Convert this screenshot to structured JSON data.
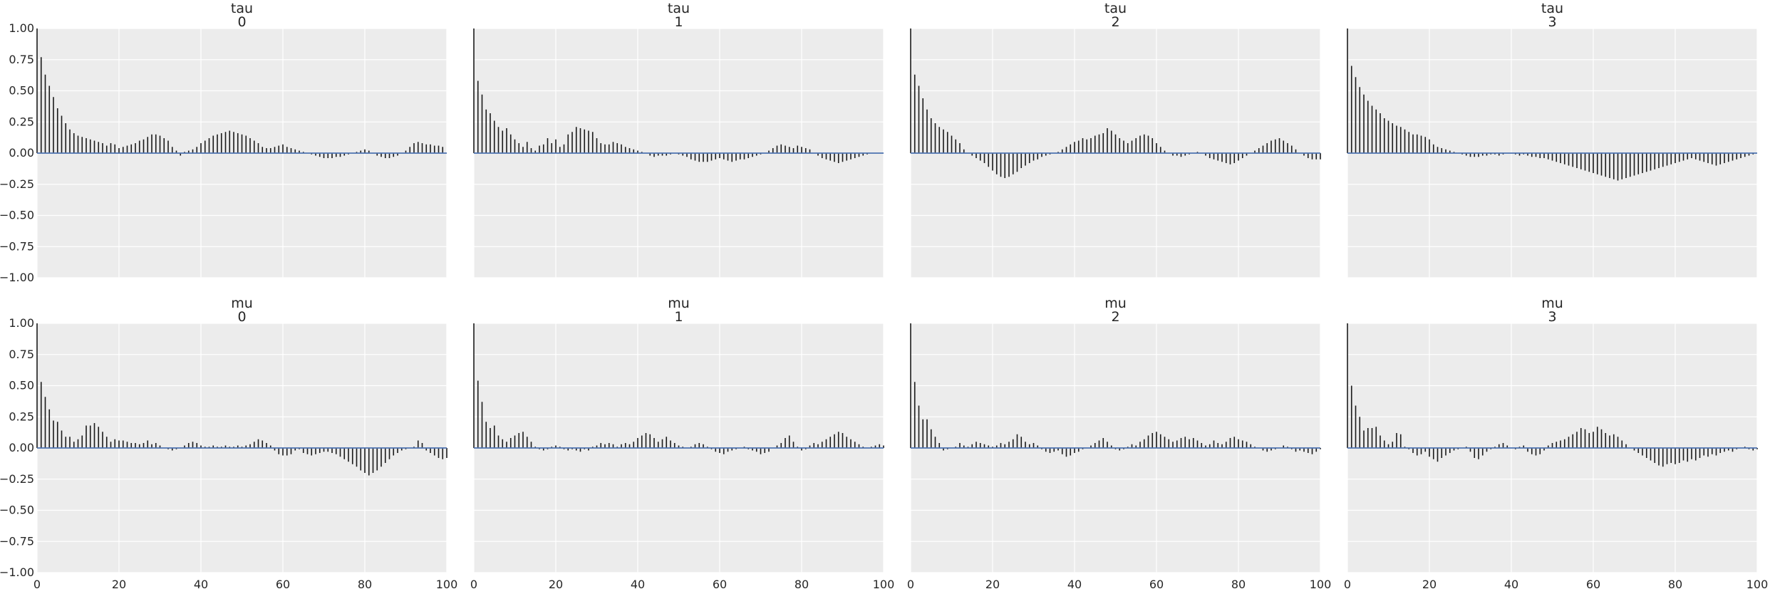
{
  "chart_data": {
    "type": "bar",
    "layout": "2x4 grid of autocorrelation plots",
    "xlim": [
      0,
      100
    ],
    "ylim": [
      -1,
      1
    ],
    "xticks": [
      0,
      20,
      40,
      60,
      80,
      100
    ],
    "yticks": [
      1.0,
      0.75,
      0.5,
      0.25,
      0.0,
      -0.25,
      -0.5,
      -0.75,
      -1.0
    ],
    "xtick_labels": [
      "0",
      "20",
      "40",
      "60",
      "80",
      "100"
    ],
    "ytick_labels": [
      "1.00",
      "0.75",
      "0.50",
      "0.25",
      "0.00",
      "−0.25",
      "−0.50",
      "−0.75",
      "−1.00"
    ],
    "grid": true,
    "background": "#ececec",
    "bar_color": "#1a1a1a",
    "zero_line_color": "#4c72b0",
    "panels": [
      {
        "var": "tau",
        "idx": "0",
        "row": 0,
        "col": 0,
        "values": [
          1.0,
          0.77,
          0.63,
          0.54,
          0.45,
          0.36,
          0.3,
          0.24,
          0.19,
          0.16,
          0.14,
          0.13,
          0.12,
          0.11,
          0.1,
          0.09,
          0.08,
          0.06,
          0.08,
          0.07,
          0.04,
          0.05,
          0.06,
          0.07,
          0.08,
          0.1,
          0.11,
          0.13,
          0.15,
          0.15,
          0.14,
          0.12,
          0.1,
          0.05,
          0.02,
          -0.02,
          0.01,
          0.02,
          0.03,
          0.05,
          0.08,
          0.1,
          0.12,
          0.14,
          0.15,
          0.16,
          0.17,
          0.18,
          0.17,
          0.16,
          0.15,
          0.14,
          0.12,
          0.1,
          0.08,
          0.05,
          0.04,
          0.04,
          0.05,
          0.06,
          0.07,
          0.05,
          0.04,
          0.03,
          0.02,
          0.01,
          0.0,
          -0.01,
          -0.02,
          -0.03,
          -0.04,
          -0.04,
          -0.04,
          -0.03,
          -0.03,
          -0.02,
          -0.01,
          0.0,
          0.01,
          0.02,
          0.03,
          0.02,
          0.0,
          -0.02,
          -0.03,
          -0.04,
          -0.04,
          -0.03,
          -0.02,
          0.0,
          0.02,
          0.05,
          0.08,
          0.09,
          0.08,
          0.07,
          0.07,
          0.06,
          0.06,
          0.05
        ]
      },
      {
        "var": "tau",
        "idx": "1",
        "row": 0,
        "col": 1,
        "values": [
          1.0,
          0.58,
          0.47,
          0.35,
          0.32,
          0.26,
          0.21,
          0.18,
          0.2,
          0.15,
          0.11,
          0.08,
          0.05,
          0.09,
          0.04,
          0.02,
          0.06,
          0.07,
          0.12,
          0.08,
          0.11,
          0.05,
          0.07,
          0.15,
          0.17,
          0.21,
          0.2,
          0.19,
          0.18,
          0.17,
          0.12,
          0.08,
          0.07,
          0.07,
          0.09,
          0.08,
          0.07,
          0.05,
          0.04,
          0.03,
          0.02,
          0.01,
          0.0,
          -0.02,
          -0.03,
          -0.02,
          -0.02,
          -0.02,
          -0.01,
          0.0,
          -0.01,
          -0.02,
          -0.03,
          -0.05,
          -0.06,
          -0.07,
          -0.07,
          -0.07,
          -0.06,
          -0.05,
          -0.04,
          -0.05,
          -0.06,
          -0.07,
          -0.06,
          -0.05,
          -0.05,
          -0.04,
          -0.03,
          -0.02,
          -0.01,
          0.0,
          0.02,
          0.04,
          0.06,
          0.07,
          0.06,
          0.05,
          0.04,
          0.06,
          0.05,
          0.04,
          0.03,
          0.0,
          -0.02,
          -0.04,
          -0.05,
          -0.06,
          -0.07,
          -0.08,
          -0.07,
          -0.06,
          -0.05,
          -0.04,
          -0.03,
          -0.02,
          -0.01,
          0.0,
          0.0,
          0.0
        ]
      },
      {
        "var": "tau",
        "idx": "2",
        "row": 0,
        "col": 2,
        "values": [
          1.0,
          0.63,
          0.54,
          0.44,
          0.35,
          0.28,
          0.24,
          0.21,
          0.19,
          0.17,
          0.14,
          0.11,
          0.08,
          0.03,
          0.0,
          -0.02,
          -0.04,
          -0.06,
          -0.08,
          -0.11,
          -0.14,
          -0.17,
          -0.19,
          -0.2,
          -0.19,
          -0.17,
          -0.15,
          -0.12,
          -0.1,
          -0.08,
          -0.06,
          -0.05,
          -0.03,
          -0.02,
          -0.01,
          0.0,
          0.01,
          0.03,
          0.05,
          0.07,
          0.09,
          0.1,
          0.12,
          0.11,
          0.12,
          0.14,
          0.15,
          0.16,
          0.2,
          0.18,
          0.15,
          0.12,
          0.1,
          0.08,
          0.1,
          0.12,
          0.14,
          0.15,
          0.14,
          0.12,
          0.08,
          0.05,
          0.02,
          0.0,
          -0.02,
          -0.02,
          -0.03,
          -0.02,
          -0.01,
          0.0,
          0.01,
          0.0,
          -0.02,
          -0.04,
          -0.05,
          -0.06,
          -0.07,
          -0.08,
          -0.09,
          -0.08,
          -0.06,
          -0.04,
          -0.02,
          0.0,
          0.02,
          0.04,
          0.06,
          0.08,
          0.1,
          0.11,
          0.12,
          0.1,
          0.08,
          0.06,
          0.03,
          0.0,
          -0.02,
          -0.04,
          -0.05,
          -0.05,
          -0.05
        ]
      },
      {
        "var": "tau",
        "idx": "3",
        "row": 0,
        "col": 3,
        "values": [
          1.0,
          0.7,
          0.61,
          0.53,
          0.47,
          0.42,
          0.38,
          0.35,
          0.32,
          0.28,
          0.26,
          0.24,
          0.22,
          0.21,
          0.19,
          0.17,
          0.15,
          0.15,
          0.14,
          0.13,
          0.11,
          0.07,
          0.05,
          0.04,
          0.03,
          0.02,
          0.01,
          0.0,
          -0.01,
          -0.02,
          -0.03,
          -0.03,
          -0.03,
          -0.02,
          -0.02,
          -0.01,
          -0.01,
          -0.02,
          -0.01,
          0.0,
          0.0,
          -0.01,
          -0.02,
          -0.01,
          -0.02,
          -0.03,
          -0.03,
          -0.04,
          -0.04,
          -0.05,
          -0.06,
          -0.07,
          -0.08,
          -0.09,
          -0.1,
          -0.11,
          -0.12,
          -0.13,
          -0.14,
          -0.15,
          -0.16,
          -0.17,
          -0.18,
          -0.19,
          -0.2,
          -0.21,
          -0.22,
          -0.21,
          -0.2,
          -0.19,
          -0.18,
          -0.17,
          -0.16,
          -0.15,
          -0.14,
          -0.13,
          -0.12,
          -0.11,
          -0.1,
          -0.09,
          -0.08,
          -0.07,
          -0.06,
          -0.05,
          -0.04,
          -0.05,
          -0.06,
          -0.07,
          -0.08,
          -0.09,
          -0.1,
          -0.09,
          -0.08,
          -0.07,
          -0.06,
          -0.05,
          -0.04,
          -0.03,
          -0.02,
          -0.01,
          0.0
        ]
      },
      {
        "var": "mu",
        "idx": "0",
        "row": 1,
        "col": 0,
        "values": [
          1.0,
          0.53,
          0.41,
          0.31,
          0.22,
          0.21,
          0.14,
          0.09,
          0.09,
          0.05,
          0.07,
          0.1,
          0.18,
          0.18,
          0.2,
          0.17,
          0.13,
          0.09,
          0.05,
          0.07,
          0.06,
          0.06,
          0.05,
          0.04,
          0.04,
          0.03,
          0.04,
          0.06,
          0.03,
          0.04,
          0.02,
          0.0,
          -0.01,
          -0.02,
          -0.01,
          0.0,
          0.02,
          0.04,
          0.05,
          0.04,
          0.02,
          0.01,
          0.01,
          0.02,
          0.01,
          0.01,
          0.02,
          0.01,
          0.01,
          0.02,
          0.01,
          0.02,
          0.03,
          0.05,
          0.07,
          0.06,
          0.04,
          0.02,
          -0.02,
          -0.05,
          -0.06,
          -0.06,
          -0.05,
          -0.02,
          -0.01,
          -0.04,
          -0.05,
          -0.06,
          -0.05,
          -0.04,
          -0.03,
          -0.03,
          -0.04,
          -0.05,
          -0.07,
          -0.09,
          -0.11,
          -0.13,
          -0.15,
          -0.18,
          -0.2,
          -0.22,
          -0.2,
          -0.18,
          -0.15,
          -0.12,
          -0.09,
          -0.06,
          -0.04,
          -0.02,
          -0.01,
          0.0,
          0.01,
          0.06,
          0.04,
          -0.02,
          -0.04,
          -0.06,
          -0.08,
          -0.09,
          -0.08
        ]
      },
      {
        "var": "mu",
        "idx": "1",
        "row": 1,
        "col": 1,
        "values": [
          1.0,
          0.54,
          0.37,
          0.21,
          0.16,
          0.18,
          0.1,
          0.07,
          0.05,
          0.08,
          0.1,
          0.12,
          0.13,
          0.09,
          0.05,
          0.01,
          -0.01,
          -0.02,
          -0.01,
          0.01,
          0.02,
          0.01,
          -0.01,
          -0.02,
          -0.01,
          -0.02,
          -0.03,
          -0.01,
          -0.02,
          0.01,
          0.02,
          0.04,
          0.03,
          0.04,
          0.03,
          0.01,
          0.03,
          0.04,
          0.03,
          0.05,
          0.08,
          0.1,
          0.12,
          0.11,
          0.08,
          0.05,
          0.07,
          0.09,
          0.06,
          0.04,
          0.02,
          0.01,
          0.0,
          0.01,
          0.03,
          0.04,
          0.03,
          0.01,
          -0.01,
          -0.03,
          -0.04,
          -0.05,
          -0.03,
          -0.02,
          -0.01,
          0.0,
          0.01,
          -0.01,
          -0.02,
          -0.03,
          -0.05,
          -0.04,
          -0.03,
          0.0,
          0.02,
          0.04,
          0.08,
          0.1,
          0.05,
          0.01,
          -0.02,
          -0.01,
          0.02,
          0.04,
          0.03,
          0.05,
          0.07,
          0.09,
          0.11,
          0.13,
          0.12,
          0.09,
          0.07,
          0.05,
          0.03,
          0.01,
          0.0,
          0.01,
          0.02,
          0.03,
          0.02
        ]
      },
      {
        "var": "mu",
        "idx": "2",
        "row": 1,
        "col": 2,
        "values": [
          1.0,
          0.53,
          0.34,
          0.23,
          0.23,
          0.15,
          0.09,
          0.04,
          -0.02,
          -0.01,
          0.0,
          0.01,
          0.04,
          0.02,
          0.01,
          0.03,
          0.05,
          0.04,
          0.03,
          0.02,
          0.01,
          0.02,
          0.04,
          0.03,
          0.05,
          0.07,
          0.11,
          0.09,
          0.05,
          0.03,
          0.04,
          0.02,
          -0.01,
          -0.03,
          -0.04,
          -0.03,
          -0.02,
          -0.05,
          -0.07,
          -0.06,
          -0.04,
          -0.03,
          -0.01,
          0.0,
          0.02,
          0.04,
          0.06,
          0.08,
          0.05,
          0.02,
          -0.01,
          -0.02,
          -0.01,
          0.01,
          0.03,
          0.02,
          0.05,
          0.07,
          0.1,
          0.12,
          0.13,
          0.11,
          0.09,
          0.07,
          0.05,
          0.06,
          0.08,
          0.09,
          0.07,
          0.08,
          0.06,
          0.04,
          0.02,
          0.03,
          0.06,
          0.04,
          0.03,
          0.05,
          0.08,
          0.09,
          0.07,
          0.06,
          0.05,
          0.03,
          0.01,
          0.0,
          -0.02,
          -0.03,
          -0.02,
          -0.01,
          0.0,
          0.02,
          0.01,
          -0.01,
          -0.03,
          -0.02,
          -0.03,
          -0.04,
          -0.05,
          -0.03,
          -0.01
        ]
      },
      {
        "var": "mu",
        "idx": "3",
        "row": 1,
        "col": 3,
        "values": [
          1.0,
          0.5,
          0.34,
          0.25,
          0.14,
          0.16,
          0.16,
          0.17,
          0.1,
          0.06,
          0.03,
          0.05,
          0.12,
          0.11,
          0.01,
          -0.01,
          -0.04,
          -0.06,
          -0.05,
          -0.03,
          -0.07,
          -0.09,
          -0.11,
          -0.08,
          -0.06,
          -0.04,
          -0.02,
          -0.01,
          0.0,
          0.01,
          -0.03,
          -0.08,
          -0.09,
          -0.06,
          -0.03,
          -0.01,
          0.01,
          0.03,
          0.04,
          0.02,
          0.0,
          -0.01,
          0.01,
          0.02,
          -0.03,
          -0.05,
          -0.06,
          -0.05,
          -0.02,
          0.02,
          0.04,
          0.05,
          0.06,
          0.07,
          0.09,
          0.11,
          0.13,
          0.16,
          0.15,
          0.12,
          0.13,
          0.17,
          0.15,
          0.12,
          0.1,
          0.11,
          0.09,
          0.06,
          0.03,
          0.0,
          -0.02,
          -0.04,
          -0.06,
          -0.08,
          -0.1,
          -0.12,
          -0.14,
          -0.15,
          -0.13,
          -0.12,
          -0.13,
          -0.12,
          -0.1,
          -0.11,
          -0.09,
          -0.1,
          -0.08,
          -0.06,
          -0.07,
          -0.05,
          -0.06,
          -0.04,
          -0.03,
          -0.02,
          -0.03,
          -0.01,
          0.0,
          0.01,
          -0.01,
          -0.02,
          -0.01
        ]
      }
    ]
  }
}
